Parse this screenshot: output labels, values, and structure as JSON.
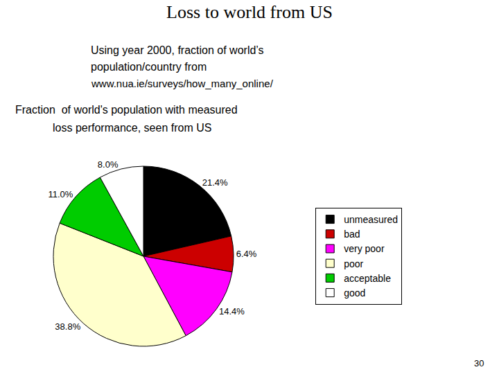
{
  "chart_data": {
    "type": "pie",
    "title": "Loss to world from US",
    "subtitle": [
      "Using year 2000, fraction of world’s",
      "population/country from",
      "www.nua.ie/surveys/how_many_online/"
    ],
    "annotations": [
      "Fraction  of world's population with measured",
      "loss performance, seen from US",
      "30"
    ],
    "categories": [
      "unmeasured",
      "bad",
      "very poor",
      "poor",
      "acceptable",
      "good"
    ],
    "values": [
      21.4,
      6.4,
      14.4,
      38.8,
      11.0,
      8.0
    ],
    "value_labels": [
      "21.4%",
      "6.4%",
      "14.4%",
      "38.8%",
      "11.0%",
      "8.0%"
    ],
    "colors": [
      "#000000",
      "#cc0000",
      "#ff00ff",
      "#ffffcc",
      "#00cc00",
      "#ffffff"
    ],
    "data_labels": true,
    "legend": "right"
  }
}
